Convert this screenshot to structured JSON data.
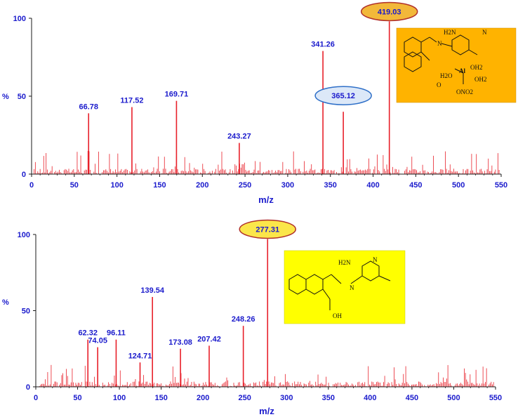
{
  "chart_data": [
    {
      "type": "bar",
      "xlabel": "m/z",
      "ylabel": "%",
      "xlim": [
        0,
        550
      ],
      "ylim": [
        0,
        100
      ],
      "xticks": [
        "0",
        "50",
        "100",
        "150",
        "200",
        "250",
        "300",
        "350",
        "400",
        "450",
        "500",
        "550"
      ],
      "yticks": [
        "0",
        "50",
        "100"
      ],
      "peaks": [
        {
          "x": 66.78,
          "y": 39,
          "label": "66.78"
        },
        {
          "x": 117.52,
          "y": 43,
          "label": "117.52"
        },
        {
          "x": 169.71,
          "y": 47,
          "label": "169.71"
        },
        {
          "x": 243.27,
          "y": 20,
          "label": "243.27"
        },
        {
          "x": 341.26,
          "y": 79,
          "label": "341.26"
        },
        {
          "x": 365.12,
          "y": 40,
          "label": "365.12",
          "highlight": "oval-blue"
        },
        {
          "x": 419.03,
          "y": 98,
          "label": "419.03",
          "highlight": "oval-orange"
        }
      ],
      "structure": {
        "background": "#ffb300",
        "labels": [
          "H2N",
          "N",
          "N",
          "H2O",
          "Al",
          "OH2",
          "OH2",
          "O",
          "ONO2"
        ]
      }
    },
    {
      "type": "bar",
      "xlabel": "m/z",
      "ylabel": "%",
      "xlim": [
        0,
        550
      ],
      "ylim": [
        0,
        100
      ],
      "xticks": [
        "0",
        "50",
        "100",
        "150",
        "200",
        "250",
        "300",
        "350",
        "400",
        "450",
        "500",
        "550"
      ],
      "yticks": [
        "0",
        "50",
        "100"
      ],
      "peaks": [
        {
          "x": 62.32,
          "y": 31,
          "label": "62.32"
        },
        {
          "x": 74.05,
          "y": 26,
          "label": "74.05"
        },
        {
          "x": 96.11,
          "y": 31,
          "label": "96.11"
        },
        {
          "x": 124.71,
          "y": 16,
          "label": "124.71"
        },
        {
          "x": 139.54,
          "y": 59,
          "label": "139.54"
        },
        {
          "x": 173.08,
          "y": 25,
          "label": "173.08"
        },
        {
          "x": 207.42,
          "y": 27,
          "label": "207.42"
        },
        {
          "x": 248.26,
          "y": 40,
          "label": "248.26"
        },
        {
          "x": 277.31,
          "y": 97,
          "label": "277.31",
          "highlight": "oval-yellow"
        }
      ],
      "structure": {
        "background": "#ffff00",
        "labels": [
          "H2N",
          "N",
          "N",
          "OH"
        ]
      }
    }
  ],
  "colors": {
    "peak": "#e8202a",
    "axis": "#1a1a1a",
    "text": "#1a1acc",
    "oval_orange": "#f2b83a",
    "oval_blue": "#dce8f8",
    "oval_yellow": "#fbe64a",
    "oval_stroke_red": "#b0302a",
    "oval_stroke_blue": "#2e6fc8"
  }
}
